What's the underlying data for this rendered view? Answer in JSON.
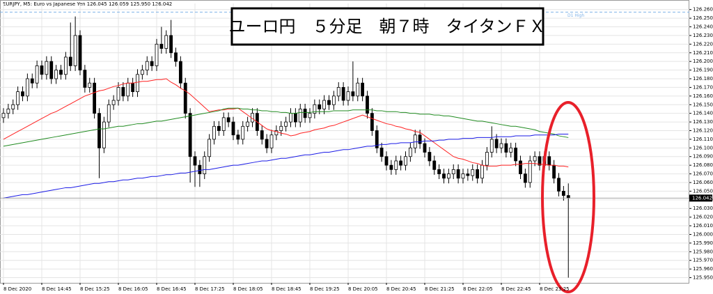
{
  "chart_data": {
    "type": "candlestick",
    "header": "EURJPY, M5:  Euro vs Japanese Yen  126.045 126.059 125.950 126.042",
    "title": "ユーロ円　５分足　朝７時　タイタンＦＸ",
    "categories": [
      "8 Dec 2020",
      null,
      null,
      null,
      null,
      null,
      null,
      null,
      "8 Dec 14:45",
      null,
      null,
      null,
      null,
      null,
      null,
      null,
      "8 Dec 15:25",
      null,
      null,
      null,
      null,
      null,
      null,
      null,
      "8 Dec 16:05",
      null,
      null,
      null,
      null,
      null,
      null,
      null,
      "8 Dec 16:45",
      null,
      null,
      null,
      null,
      null,
      null,
      null,
      "8 Dec 17:25",
      null,
      null,
      null,
      null,
      null,
      null,
      null,
      "8 Dec 18:05",
      null,
      null,
      null,
      null,
      null,
      null,
      null,
      "8 Dec 18:45",
      null,
      null,
      null,
      null,
      null,
      null,
      null,
      "8 Dec 19:25",
      null,
      null,
      null,
      null,
      null,
      null,
      null,
      "8 Dec 20:05",
      null,
      null,
      null,
      null,
      null,
      null,
      null,
      "8 Dec 20:45",
      null,
      null,
      null,
      null,
      null,
      null,
      null,
      "8 Dec 21:25",
      null,
      null,
      null,
      null,
      null,
      null,
      null,
      "8 Dec 22:05",
      null,
      null,
      null,
      null,
      null,
      null,
      null,
      "8 Dec 22:45",
      null,
      null,
      null,
      null,
      null,
      null,
      null,
      "8 Dec 23:25",
      null,
      null,
      null,
      null,
      null,
      null
    ],
    "open": [
      126.135,
      126.14,
      126.145,
      126.15,
      126.165,
      126.16,
      126.18,
      126.175,
      126.195,
      126.185,
      126.2,
      126.18,
      126.19,
      126.185,
      126.205,
      126.195,
      126.23,
      126.19,
      126.17,
      126.175,
      126.14,
      126.1,
      126.13,
      126.15,
      126.155,
      126.17,
      126.16,
      126.175,
      126.165,
      126.185,
      126.19,
      126.2,
      126.195,
      126.22,
      126.215,
      126.23,
      126.21,
      126.2,
      126.175,
      126.14,
      126.09,
      126.08,
      126.07,
      126.09,
      126.11,
      126.125,
      126.12,
      126.135,
      126.13,
      126.115,
      126.11,
      126.125,
      126.13,
      126.14,
      126.12,
      126.11,
      126.1,
      126.115,
      126.12,
      126.125,
      126.13,
      126.14,
      126.13,
      126.145,
      126.135,
      126.14,
      126.15,
      126.145,
      126.155,
      126.15,
      126.16,
      126.17,
      126.155,
      126.165,
      126.16,
      126.175,
      126.16,
      126.14,
      126.12,
      126.1,
      126.09,
      126.08,
      126.075,
      126.085,
      126.08,
      126.09,
      126.1,
      126.115,
      126.105,
      126.095,
      126.085,
      126.075,
      126.07,
      126.065,
      126.07,
      126.075,
      126.065,
      126.07,
      126.068,
      126.075,
      126.065,
      126.08,
      126.095,
      126.11,
      126.1,
      126.105,
      126.095,
      126.1,
      126.085,
      126.07,
      126.06,
      126.085,
      126.09,
      126.08,
      126.09,
      126.08,
      126.065,
      126.05,
      126.045
    ],
    "high": [
      126.146,
      126.151,
      126.156,
      126.171,
      126.171,
      126.186,
      126.186,
      126.201,
      126.201,
      126.206,
      126.206,
      126.196,
      126.196,
      126.211,
      126.245,
      126.252,
      126.236,
      126.196,
      126.181,
      126.181,
      126.146,
      126.136,
      126.156,
      126.161,
      126.176,
      126.176,
      126.181,
      126.181,
      126.191,
      126.196,
      126.206,
      126.206,
      126.226,
      126.24,
      126.236,
      126.248,
      126.216,
      126.206,
      126.181,
      126.146,
      126.096,
      126.086,
      126.096,
      126.116,
      126.131,
      126.131,
      126.141,
      126.141,
      126.136,
      126.121,
      126.131,
      126.136,
      126.146,
      126.146,
      126.126,
      126.116,
      126.121,
      126.126,
      126.131,
      126.136,
      126.146,
      126.146,
      126.151,
      126.151,
      126.146,
      126.156,
      126.156,
      126.161,
      126.161,
      126.166,
      126.176,
      126.176,
      126.171,
      126.2,
      126.181,
      126.181,
      126.166,
      126.146,
      126.126,
      126.106,
      126.096,
      126.086,
      126.091,
      126.091,
      126.096,
      126.106,
      126.121,
      126.121,
      126.111,
      126.101,
      126.091,
      126.081,
      126.076,
      126.076,
      126.081,
      126.081,
      126.076,
      126.076,
      126.081,
      126.081,
      126.086,
      126.101,
      126.125,
      126.116,
      126.111,
      126.111,
      126.106,
      126.106,
      126.091,
      126.076,
      126.091,
      126.096,
      126.096,
      126.096,
      126.096,
      126.086,
      126.071,
      126.056,
      126.059
    ],
    "low": [
      126.129,
      126.134,
      126.139,
      126.144,
      126.154,
      126.154,
      126.169,
      126.169,
      126.179,
      126.179,
      126.174,
      126.174,
      126.179,
      126.179,
      126.189,
      126.189,
      126.184,
      126.164,
      126.164,
      126.134,
      126.065,
      126.094,
      126.124,
      126.144,
      126.149,
      126.154,
      126.154,
      126.159,
      126.159,
      126.179,
      126.184,
      126.189,
      126.189,
      126.209,
      126.209,
      126.204,
      126.194,
      126.169,
      126.134,
      126.06,
      126.055,
      126.055,
      126.064,
      126.084,
      126.104,
      126.114,
      126.114,
      126.124,
      126.109,
      126.104,
      126.104,
      126.119,
      126.124,
      126.114,
      126.104,
      126.094,
      126.094,
      126.109,
      126.114,
      126.119,
      126.124,
      126.124,
      126.124,
      126.129,
      126.129,
      126.134,
      126.139,
      126.139,
      126.144,
      126.144,
      126.154,
      126.149,
      126.149,
      126.154,
      126.154,
      126.154,
      126.134,
      126.114,
      126.094,
      126.084,
      126.074,
      126.069,
      126.069,
      126.074,
      126.074,
      126.084,
      126.094,
      126.099,
      126.089,
      126.079,
      126.069,
      126.064,
      126.059,
      126.059,
      126.064,
      126.059,
      126.059,
      126.062,
      126.062,
      126.059,
      126.059,
      126.074,
      126.089,
      126.094,
      126.094,
      126.089,
      126.089,
      126.079,
      126.064,
      126.054,
      126.054,
      126.079,
      126.074,
      126.074,
      126.074,
      126.059,
      126.044,
      126.039,
      125.95
    ],
    "close": [
      126.14,
      126.145,
      126.15,
      126.165,
      126.16,
      126.18,
      126.175,
      126.195,
      126.185,
      126.2,
      126.18,
      126.19,
      126.185,
      126.205,
      126.195,
      126.23,
      126.19,
      126.17,
      126.175,
      126.14,
      126.1,
      126.13,
      126.15,
      126.155,
      126.17,
      126.16,
      126.175,
      126.165,
      126.185,
      126.19,
      126.2,
      126.195,
      126.22,
      126.215,
      126.23,
      126.21,
      126.2,
      126.175,
      126.14,
      126.09,
      126.08,
      126.07,
      126.09,
      126.11,
      126.125,
      126.12,
      126.135,
      126.13,
      126.115,
      126.11,
      126.125,
      126.13,
      126.14,
      126.12,
      126.11,
      126.1,
      126.115,
      126.12,
      126.125,
      126.13,
      126.14,
      126.13,
      126.145,
      126.135,
      126.14,
      126.15,
      126.145,
      126.155,
      126.15,
      126.16,
      126.17,
      126.155,
      126.165,
      126.16,
      126.175,
      126.16,
      126.14,
      126.12,
      126.1,
      126.09,
      126.08,
      126.075,
      126.085,
      126.08,
      126.09,
      126.1,
      126.115,
      126.105,
      126.095,
      126.085,
      126.075,
      126.07,
      126.065,
      126.07,
      126.075,
      126.065,
      126.07,
      126.068,
      126.075,
      126.065,
      126.08,
      126.095,
      126.11,
      126.1,
      126.105,
      126.095,
      126.1,
      126.085,
      126.07,
      126.06,
      126.085,
      126.09,
      126.08,
      126.09,
      126.08,
      126.065,
      126.05,
      126.045,
      126.042
    ],
    "series": [
      {
        "color": "#ff2020",
        "values": [
          126.11,
          126.113,
          126.116,
          126.119,
          126.122,
          126.125,
          126.128,
          126.131,
          126.134,
          126.137,
          126.14,
          126.142,
          126.145,
          126.148,
          126.151,
          126.154,
          126.157,
          126.16,
          126.162,
          126.164,
          126.166,
          126.167,
          126.169,
          126.171,
          126.172,
          126.174,
          126.175,
          126.175,
          126.176,
          126.177,
          126.177,
          126.178,
          126.179,
          126.179,
          126.18,
          126.176,
          126.173,
          126.169,
          126.166,
          126.162,
          126.157,
          126.152,
          126.147,
          126.142,
          126.143,
          126.144,
          126.144,
          126.145,
          126.145,
          126.146,
          126.142,
          126.138,
          126.134,
          126.13,
          126.126,
          126.122,
          126.12,
          126.119,
          126.117,
          126.116,
          126.114,
          126.115,
          126.117,
          126.118,
          126.119,
          126.121,
          126.122,
          126.123,
          126.125,
          126.126,
          126.128,
          126.13,
          126.132,
          126.134,
          126.136,
          126.138,
          126.136,
          126.134,
          126.132,
          126.13,
          126.128,
          126.127,
          126.125,
          126.124,
          126.122,
          126.121,
          126.119,
          126.118,
          126.114,
          126.11,
          126.106,
          126.102,
          126.098,
          126.094,
          126.09,
          126.088,
          126.087,
          126.085,
          126.083,
          126.082,
          126.08,
          126.079,
          126.079,
          126.079,
          126.08,
          126.08,
          126.08,
          126.081,
          126.081,
          126.082,
          126.082,
          126.082,
          126.081,
          126.081,
          126.08,
          126.08,
          126.079,
          126.079,
          126.078
        ]
      },
      {
        "color": "#1f8a1f",
        "values": [
          126.102,
          126.103,
          126.104,
          126.105,
          126.106,
          126.107,
          126.108,
          126.109,
          126.11,
          126.111,
          126.112,
          126.113,
          126.114,
          126.115,
          126.116,
          126.117,
          126.118,
          126.119,
          126.12,
          126.121,
          126.122,
          126.122,
          126.123,
          126.124,
          126.125,
          126.125,
          126.126,
          126.127,
          126.128,
          126.128,
          126.129,
          126.13,
          126.131,
          126.131,
          126.132,
          126.133,
          126.134,
          126.135,
          126.136,
          126.137,
          126.138,
          126.139,
          126.14,
          126.141,
          126.142,
          126.143,
          126.145,
          126.146,
          126.146,
          126.146,
          126.145,
          126.145,
          126.144,
          126.144,
          126.143,
          126.143,
          126.142,
          126.142,
          126.141,
          126.141,
          126.14,
          126.14,
          126.141,
          126.141,
          126.141,
          126.142,
          126.142,
          126.142,
          126.142,
          126.143,
          126.143,
          126.143,
          126.143,
          126.144,
          126.144,
          126.144,
          126.144,
          126.144,
          126.143,
          126.143,
          126.142,
          126.142,
          126.142,
          126.141,
          126.141,
          126.14,
          126.14,
          126.139,
          126.139,
          126.139,
          126.138,
          126.138,
          126.137,
          126.137,
          126.136,
          126.135,
          126.134,
          126.133,
          126.132,
          126.131,
          126.131,
          126.13,
          126.129,
          126.128,
          126.127,
          126.126,
          126.125,
          126.125,
          126.124,
          126.123,
          126.122,
          126.121,
          126.119,
          126.118,
          126.117,
          126.116,
          126.114,
          126.113,
          126.112
        ]
      },
      {
        "color": "#1a1ae6",
        "values": [
          126.042,
          126.043,
          126.044,
          126.045,
          126.046,
          126.046,
          126.047,
          126.048,
          126.049,
          126.05,
          126.051,
          126.052,
          126.053,
          126.054,
          126.054,
          126.055,
          126.056,
          126.057,
          126.058,
          126.059,
          126.059,
          126.06,
          126.061,
          126.061,
          126.062,
          126.063,
          126.063,
          126.064,
          126.065,
          126.065,
          126.066,
          126.067,
          126.067,
          126.068,
          126.069,
          126.069,
          126.07,
          126.071,
          126.071,
          126.072,
          126.073,
          126.074,
          126.075,
          126.075,
          126.076,
          126.077,
          126.078,
          126.079,
          126.08,
          126.08,
          126.081,
          126.082,
          126.083,
          126.084,
          126.085,
          126.085,
          126.086,
          126.087,
          126.088,
          126.088,
          126.089,
          126.09,
          126.091,
          126.092,
          126.092,
          126.093,
          126.094,
          126.095,
          126.095,
          126.096,
          126.097,
          126.098,
          126.098,
          126.099,
          126.1,
          126.101,
          126.102,
          126.102,
          126.103,
          126.104,
          126.104,
          126.105,
          126.105,
          126.106,
          126.106,
          126.106,
          126.107,
          126.107,
          126.108,
          126.108,
          126.108,
          126.109,
          126.109,
          126.11,
          126.11,
          126.11,
          126.111,
          126.111,
          126.111,
          126.112,
          126.112,
          126.112,
          126.112,
          126.113,
          126.113,
          126.113,
          126.113,
          126.114,
          126.114,
          126.114,
          126.114,
          126.115,
          126.115,
          126.115,
          126.115,
          126.115,
          126.116,
          126.116,
          126.116
        ]
      }
    ],
    "d1_high": {
      "value": 126.257,
      "label": "D1 High"
    },
    "ylim": [
      125.944,
      126.267
    ],
    "yticks": [
      {
        "value": 125.95,
        "label": "125.950"
      },
      {
        "value": 125.96,
        "label": "125.960"
      },
      {
        "value": 125.97,
        "label": "125.970"
      },
      {
        "value": 125.98,
        "label": "125.980"
      },
      {
        "value": 125.99,
        "label": "125.990"
      },
      {
        "value": 126.0,
        "label": "126.000"
      },
      {
        "value": 126.01,
        "label": "126.010"
      },
      {
        "value": 126.02,
        "label": "126.020"
      },
      {
        "value": 126.03,
        "label": "126.030"
      },
      {
        "value": 126.04,
        "label": "126.040"
      },
      {
        "value": 126.05,
        "label": "126.050"
      },
      {
        "value": 126.06,
        "label": "126.060"
      },
      {
        "value": 126.07,
        "label": "126.070"
      },
      {
        "value": 126.08,
        "label": "126.080"
      },
      {
        "value": 126.09,
        "label": "126.090"
      },
      {
        "value": 126.1,
        "label": "126.100"
      },
      {
        "value": 126.11,
        "label": "126.110"
      },
      {
        "value": 126.12,
        "label": "126.120"
      },
      {
        "value": 126.13,
        "label": "126.130"
      },
      {
        "value": 126.14,
        "label": "126.140"
      },
      {
        "value": 126.15,
        "label": "126.150"
      },
      {
        "value": 126.16,
        "label": "126.160"
      },
      {
        "value": 126.17,
        "label": "126.170"
      },
      {
        "value": 126.18,
        "label": "126.180"
      },
      {
        "value": 126.19,
        "label": "126.190"
      },
      {
        "value": 126.2,
        "label": "126.200"
      },
      {
        "value": 126.21,
        "label": "126.210"
      },
      {
        "value": 126.22,
        "label": "126.220"
      },
      {
        "value": 126.23,
        "label": "126.230"
      },
      {
        "value": 126.24,
        "label": "126.240"
      },
      {
        "value": 126.25,
        "label": "126.250"
      },
      {
        "value": 126.26,
        "label": "126.260"
      }
    ],
    "grid": true
  }
}
